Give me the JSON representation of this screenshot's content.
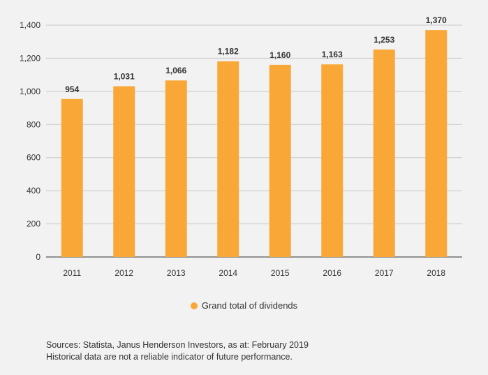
{
  "chart_data": {
    "type": "bar",
    "title": "",
    "xlabel": "",
    "ylabel": "",
    "categories": [
      "2011",
      "2012",
      "2013",
      "2014",
      "2015",
      "2016",
      "2017",
      "2018"
    ],
    "values": [
      954,
      1031,
      1066,
      1182,
      1160,
      1163,
      1253,
      1370
    ],
    "value_labels": [
      "954",
      "1,031",
      "1,066",
      "1,182",
      "1,160",
      "1,163",
      "1,253",
      "1,370"
    ],
    "ylim": [
      0,
      1400
    ],
    "yticks": [
      0,
      200,
      400,
      600,
      800,
      1000,
      1200,
      1400
    ],
    "ytick_labels": [
      "0",
      "200",
      "400",
      "600",
      "800",
      "1,000",
      "1,200",
      "1,400"
    ],
    "grid": true,
    "legend_position": "bottom-center",
    "series": [
      {
        "name": "Grand total of dividends",
        "color": "#f9a838"
      }
    ]
  },
  "legend": {
    "label": "Grand total of dividends",
    "color": "#f9a838"
  },
  "footnote": {
    "line1": "Sources: Statista, Janus Henderson Investors, as at: February 2019",
    "line2": "Historical data are not a reliable indicator of future performance."
  },
  "colors": {
    "background": "#f2f2f2",
    "bar": "#f9a838",
    "grid": "#c8c8c8",
    "axis": "#555555",
    "text": "#333333"
  }
}
